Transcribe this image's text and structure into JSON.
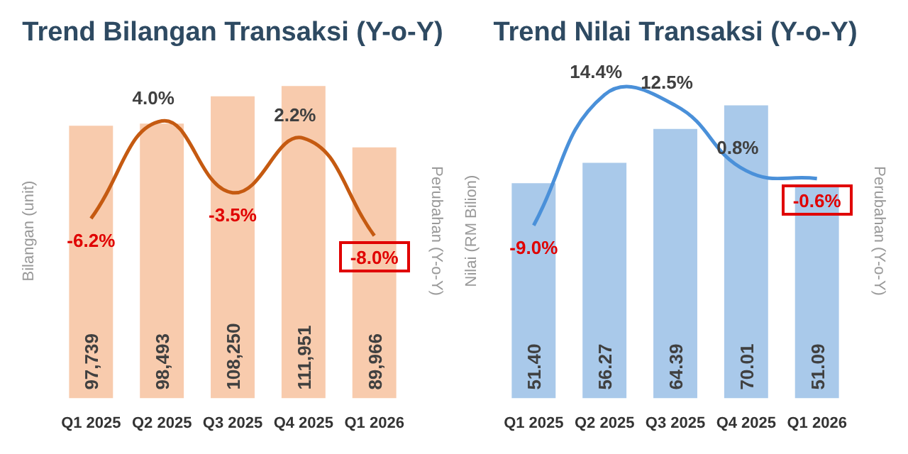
{
  "chart_data": [
    {
      "type": "bar",
      "title": "Trend Bilangan Transaksi (Y-o-Y)",
      "ylabel": "Bilangan (unit)",
      "y2label": "Perubahan (Y-o-Y)",
      "categories": [
        "Q1 2025",
        "Q2 2025",
        "Q3 2025",
        "Q4 2025",
        "Q1 2026"
      ],
      "series": [
        {
          "color": "#f8cbad",
          "values": [
            97739,
            98493,
            108250,
            111951,
            89966
          ],
          "value_labels": [
            "97,739",
            "98,493",
            "108,250",
            "111,951",
            "89,966"
          ]
        },
        {
          "type": "line",
          "axis": "y2",
          "color": "#c55a11",
          "values": [
            -6.2,
            4.0,
            -3.5,
            2.2,
            -8.0
          ],
          "value_labels": [
            "-6.2%",
            "4.0%",
            "-3.5%",
            "2.2%",
            "-8.0%"
          ]
        }
      ]
    },
    {
      "type": "bar",
      "title": "Trend Nilai Transaksi (Y-o-Y)",
      "ylabel": "Nilai (RM Bilion)",
      "y2label": "Perubahan (Y-o-Y)",
      "categories": [
        "Q1 2025",
        "Q2 2025",
        "Q3 2025",
        "Q4 2025",
        "Q1 2026"
      ],
      "series": [
        {
          "color": "#a9c9ea",
          "values": [
            51.4,
            56.27,
            64.39,
            70.01,
            51.09
          ],
          "value_labels": [
            "51.40",
            "56.27",
            "64.39",
            "70.01",
            "51.09"
          ]
        },
        {
          "type": "line",
          "axis": "y2",
          "color": "#4a90d9",
          "values": [
            -9.0,
            14.4,
            12.5,
            0.8,
            -0.6
          ],
          "value_labels": [
            "-9.0%",
            "14.4%",
            "12.5%",
            "0.8%",
            "-0.6%"
          ]
        }
      ]
    }
  ]
}
